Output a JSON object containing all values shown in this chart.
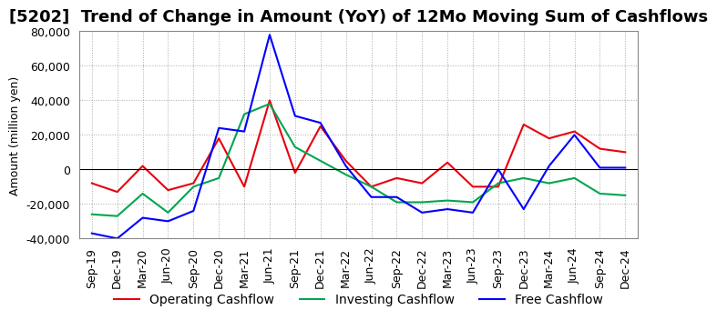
{
  "title": "[5202]  Trend of Change in Amount (YoY) of 12Mo Moving Sum of Cashflows",
  "ylabel": "Amount (million yen)",
  "x_labels": [
    "Sep-19",
    "Dec-19",
    "Mar-20",
    "Jun-20",
    "Sep-20",
    "Dec-20",
    "Mar-21",
    "Jun-21",
    "Sep-21",
    "Dec-21",
    "Mar-22",
    "Jun-22",
    "Sep-22",
    "Dec-22",
    "Mar-23",
    "Jun-23",
    "Sep-23",
    "Dec-23",
    "Mar-24",
    "Jun-24",
    "Sep-24",
    "Dec-24"
  ],
  "operating": [
    -8000,
    -13000,
    2000,
    -12000,
    -8000,
    18000,
    -10000,
    40000,
    -2000,
    25000,
    5000,
    -10000,
    -5000,
    -8000,
    4000,
    -10000,
    -10000,
    26000,
    18000,
    22000,
    12000,
    10000
  ],
  "investing": [
    -26000,
    -27000,
    -14000,
    -25000,
    -10000,
    -5000,
    32000,
    38000,
    13000,
    5000,
    -3000,
    -10000,
    -19000,
    -19000,
    -18000,
    -19000,
    -8000,
    -5000,
    -8000,
    -5000,
    -14000,
    -15000
  ],
  "free": [
    -37000,
    -40000,
    -28000,
    -30000,
    -24000,
    24000,
    22000,
    78000,
    31000,
    27000,
    2000,
    -16000,
    -16000,
    -25000,
    -23000,
    -25000,
    0,
    -23000,
    2000,
    20000,
    1000,
    1000
  ],
  "operating_color": "#e8000d",
  "investing_color": "#00a550",
  "free_color": "#0000ff",
  "ylim": [
    -40000,
    80000
  ],
  "yticks": [
    -40000,
    -20000,
    0,
    20000,
    40000,
    60000,
    80000
  ],
  "background_color": "#ffffff",
  "grid_color": "#aaaaaa",
  "title_fontsize": 13,
  "legend_fontsize": 10,
  "axis_fontsize": 9
}
